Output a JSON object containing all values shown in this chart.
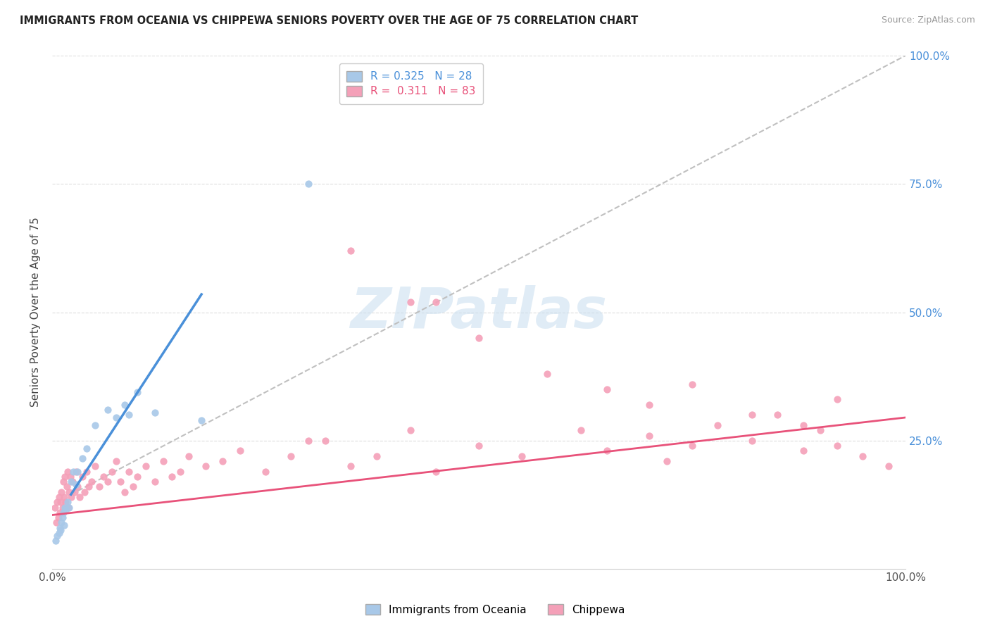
{
  "title": "IMMIGRANTS FROM OCEANIA VS CHIPPEWA SENIORS POVERTY OVER THE AGE OF 75 CORRELATION CHART",
  "source": "Source: ZipAtlas.com",
  "ylabel": "Seniors Poverty Over the Age of 75",
  "xlim": [
    0,
    1.0
  ],
  "ylim": [
    0,
    1.0
  ],
  "blue_color": "#a8c8e8",
  "pink_color": "#f4a0b8",
  "blue_line_color": "#4a90d9",
  "pink_line_color": "#e8527a",
  "dashed_line_color": "#c0c0c0",
  "right_tick_color": "#4a90d9",
  "legend_R_blue": "0.325",
  "legend_N_blue": "28",
  "legend_R_pink": "0.311",
  "legend_N_pink": "83",
  "watermark_text": "ZIPatlas",
  "watermark_color": "#cce0f0",
  "blue_line_x": [
    0.022,
    0.175
  ],
  "blue_line_y": [
    0.145,
    0.535
  ],
  "dashed_line_x": [
    0.022,
    1.0
  ],
  "dashed_line_y": [
    0.145,
    1.0
  ],
  "pink_line_x": [
    0.0,
    1.0
  ],
  "pink_line_y": [
    0.105,
    0.295
  ],
  "blue_x": [
    0.004,
    0.006,
    0.008,
    0.009,
    0.01,
    0.011,
    0.012,
    0.013,
    0.014,
    0.015,
    0.016,
    0.018,
    0.02,
    0.022,
    0.025,
    0.028,
    0.03,
    0.035,
    0.04,
    0.05,
    0.065,
    0.075,
    0.085,
    0.09,
    0.1,
    0.12,
    0.175,
    0.3
  ],
  "blue_y": [
    0.055,
    0.065,
    0.07,
    0.08,
    0.075,
    0.09,
    0.1,
    0.11,
    0.085,
    0.12,
    0.115,
    0.13,
    0.12,
    0.17,
    0.19,
    0.165,
    0.19,
    0.215,
    0.235,
    0.28,
    0.31,
    0.295,
    0.32,
    0.3,
    0.345,
    0.305,
    0.29,
    0.75
  ],
  "pink_x": [
    0.003,
    0.005,
    0.006,
    0.007,
    0.008,
    0.009,
    0.01,
    0.011,
    0.012,
    0.013,
    0.014,
    0.015,
    0.016,
    0.017,
    0.018,
    0.019,
    0.02,
    0.021,
    0.022,
    0.024,
    0.026,
    0.028,
    0.03,
    0.032,
    0.035,
    0.038,
    0.04,
    0.043,
    0.046,
    0.05,
    0.055,
    0.06,
    0.065,
    0.07,
    0.075,
    0.08,
    0.085,
    0.09,
    0.095,
    0.1,
    0.11,
    0.12,
    0.13,
    0.14,
    0.15,
    0.16,
    0.18,
    0.2,
    0.22,
    0.25,
    0.28,
    0.32,
    0.35,
    0.38,
    0.42,
    0.45,
    0.5,
    0.55,
    0.58,
    0.62,
    0.65,
    0.7,
    0.72,
    0.75,
    0.78,
    0.82,
    0.85,
    0.88,
    0.9,
    0.92,
    0.95,
    0.98,
    0.65,
    0.7,
    0.75,
    0.82,
    0.88,
    0.92,
    0.35,
    0.42,
    0.5,
    0.3,
    0.45
  ],
  "pink_y": [
    0.12,
    0.09,
    0.13,
    0.1,
    0.14,
    0.11,
    0.13,
    0.15,
    0.12,
    0.17,
    0.14,
    0.18,
    0.13,
    0.16,
    0.19,
    0.12,
    0.15,
    0.18,
    0.14,
    0.17,
    0.15,
    0.19,
    0.16,
    0.14,
    0.18,
    0.15,
    0.19,
    0.16,
    0.17,
    0.2,
    0.16,
    0.18,
    0.17,
    0.19,
    0.21,
    0.17,
    0.15,
    0.19,
    0.16,
    0.18,
    0.2,
    0.17,
    0.21,
    0.18,
    0.19,
    0.22,
    0.2,
    0.21,
    0.23,
    0.19,
    0.22,
    0.25,
    0.2,
    0.22,
    0.27,
    0.19,
    0.24,
    0.22,
    0.38,
    0.27,
    0.23,
    0.26,
    0.21,
    0.24,
    0.28,
    0.25,
    0.3,
    0.23,
    0.27,
    0.24,
    0.22,
    0.2,
    0.35,
    0.32,
    0.36,
    0.3,
    0.28,
    0.33,
    0.62,
    0.52,
    0.45,
    0.25,
    0.52
  ]
}
